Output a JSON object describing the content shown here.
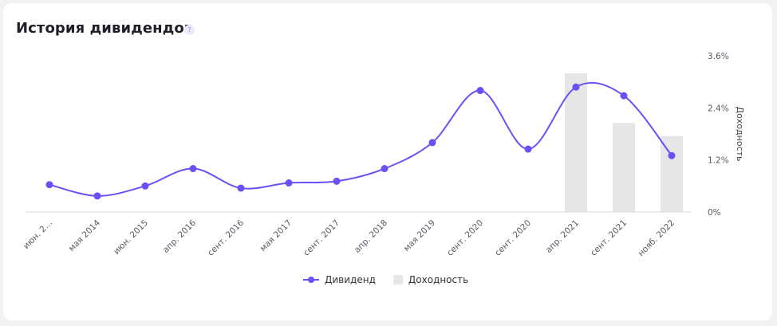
{
  "card": {
    "title": "История дивидендов",
    "help_label": "?"
  },
  "legend": {
    "dividend_label": "Дивиденд",
    "yield_label": "Доходность"
  },
  "colors": {
    "dividend": "#6c4ff6",
    "yield": "#e6e6e6"
  },
  "chart_data": {
    "type": "line",
    "categories": [
      "июн. 2…",
      "мая 2014",
      "июн. 2015",
      "апр. 2016",
      "сент. 2016",
      "мая 2017",
      "сент. 2017",
      "апр. 2018",
      "мая 2019",
      "сент. 2020",
      "сент. 2020",
      "апр. 2021",
      "сент. 2021",
      "нояб. 2022"
    ],
    "series": [
      {
        "name": "Дивиденд",
        "type": "line",
        "values": [
          0.63,
          0.37,
          0.6,
          1.0,
          0.55,
          0.67,
          0.71,
          1.0,
          1.6,
          2.8,
          1.45,
          2.88,
          2.68,
          1.3
        ]
      },
      {
        "name": "Доходность",
        "type": "bar",
        "axis": "right",
        "values": [
          null,
          null,
          null,
          null,
          null,
          null,
          null,
          null,
          null,
          null,
          null,
          3.2,
          2.05,
          1.75
        ]
      }
    ],
    "ylabel_right": "Доходность",
    "y_right_ticks": [
      "0%",
      "1.2%",
      "2.4%",
      "3.6%"
    ],
    "ylim_right": [
      0,
      3.6
    ],
    "grid": false,
    "legend_position": "bottom"
  }
}
